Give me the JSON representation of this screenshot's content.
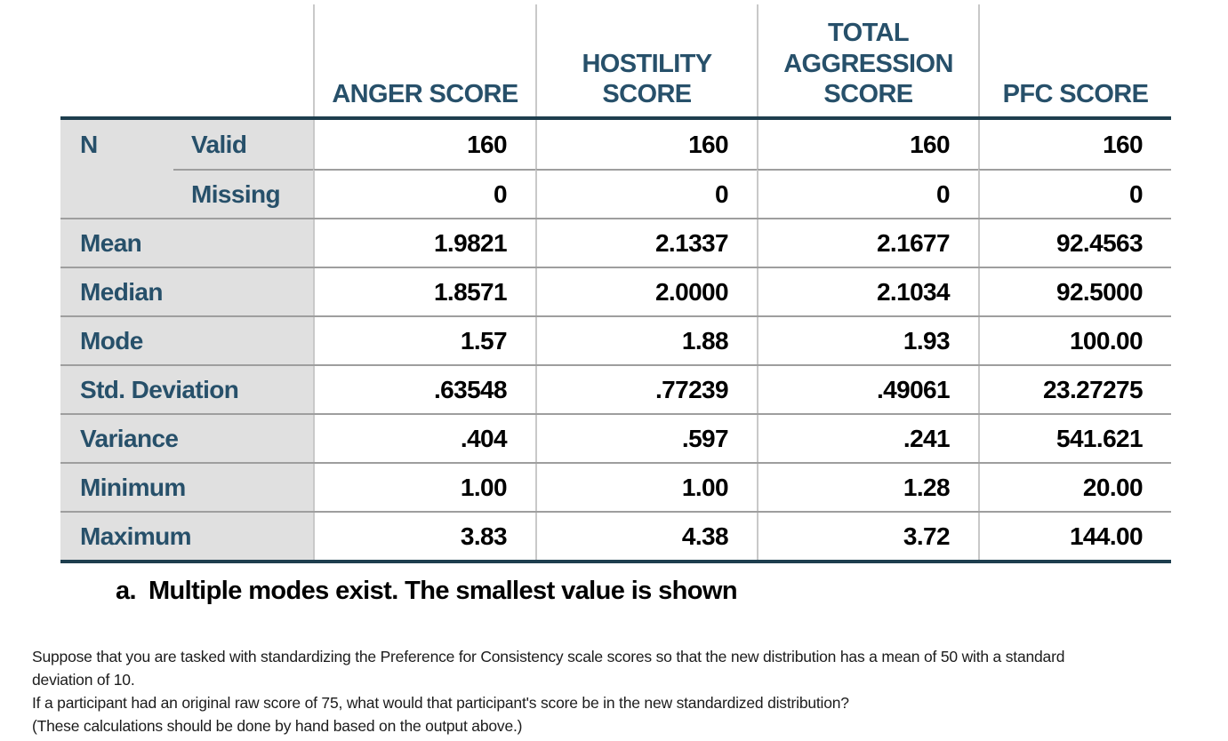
{
  "colors": {
    "header-text": "#27506a",
    "label-bg": "#e0e0e0",
    "thick-rule": "#1e3e4e",
    "row-line": "#9e9e9e",
    "col-line": "#c9c9c9",
    "value-text": "#000000",
    "body-text": "#1c1c1c"
  },
  "table": {
    "columns": [
      "ANGER SCORE",
      "HOSTILITY\nSCORE",
      "TOTAL\nAGGRESSION\nSCORE",
      "PFC SCORE"
    ],
    "n_label": "N",
    "n_rows": [
      {
        "sublabel": "Valid",
        "values": [
          "160",
          "160",
          "160",
          "160"
        ]
      },
      {
        "sublabel": "Missing",
        "values": [
          "0",
          "0",
          "0",
          "0"
        ]
      }
    ],
    "rows": [
      {
        "label": "Mean",
        "values": [
          "1.9821",
          "2.1337",
          "2.1677",
          "92.4563"
        ]
      },
      {
        "label": "Median",
        "values": [
          "1.8571",
          "2.0000",
          "2.1034",
          "92.5000"
        ]
      },
      {
        "label": "Mode",
        "values": [
          "1.57",
          "1.88",
          "1.93",
          "100.00"
        ]
      },
      {
        "label": "Std. Deviation",
        "values": [
          ".63548",
          ".77239",
          ".49061",
          "23.27275"
        ]
      },
      {
        "label": "Variance",
        "values": [
          ".404",
          ".597",
          ".241",
          "541.621"
        ]
      },
      {
        "label": "Minimum",
        "values": [
          "1.00",
          "1.00",
          "1.28",
          "20.00"
        ]
      },
      {
        "label": "Maximum",
        "values": [
          "3.83",
          "4.38",
          "3.72",
          "144.00"
        ]
      }
    ],
    "footnote_marker": "a.",
    "footnote_text": "Multiple modes exist. The smallest value is shown"
  },
  "question": {
    "para1": "Suppose that you are tasked with standardizing the Preference for Consistency scale scores so that the new distribution has a mean of 50 with a standard\ndeviation of 10.",
    "para2": "If a participant had an original raw score of 75, what would that participant's score be in the new standardized distribution?",
    "para3": "(These calculations should be done by hand based on the output above.)"
  }
}
